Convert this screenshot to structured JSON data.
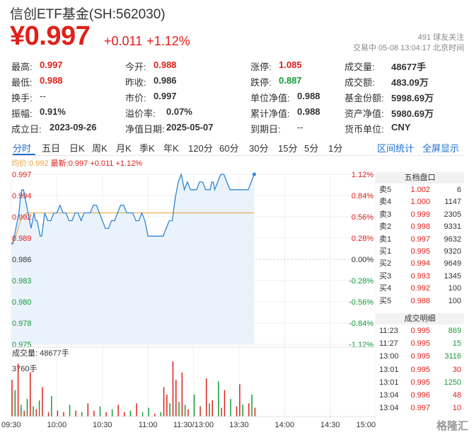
{
  "header": {
    "title": "信创ETF基金(SH:562030)",
    "price": "¥0.997",
    "change": "+0.011",
    "change_pct": "+1.12%",
    "followers": "491 球友关注",
    "status": "交易中 05-08 13:04:17 北京时间"
  },
  "stats": [
    [
      {
        "k": "最高:",
        "v": "0.997",
        "c": "red"
      },
      {
        "k": "今开:",
        "v": "0.988",
        "c": "red"
      },
      {
        "k": "涨停:",
        "v": "1.085",
        "c": "red"
      },
      {
        "k": "成交量:",
        "v": "48677手",
        "c": ""
      }
    ],
    [
      {
        "k": "最低:",
        "v": "0.988",
        "c": "red"
      },
      {
        "k": "昨收:",
        "v": "0.986",
        "c": ""
      },
      {
        "k": "跌停:",
        "v": "0.887",
        "c": "green"
      },
      {
        "k": "成交额:",
        "v": "483.09万",
        "c": ""
      }
    ],
    [
      {
        "k": "换手:",
        "v": "--",
        "c": "plain"
      },
      {
        "k": "市价:",
        "v": "0.997",
        "c": ""
      },
      {
        "k": "单位净值:",
        "v": "0.988",
        "c": ""
      },
      {
        "k": "基金份额:",
        "v": "5998.69万",
        "c": ""
      }
    ],
    [
      {
        "k": "振幅:",
        "v": "0.91%",
        "c": ""
      },
      {
        "k": "溢价率:",
        "v": "0.07%",
        "c": ""
      },
      {
        "k": "累计净值:",
        "v": "0.988",
        "c": ""
      },
      {
        "k": "资产净值:",
        "v": "5980.69万",
        "c": ""
      }
    ],
    [
      {
        "k": "成立日:",
        "v": "2023-09-26",
        "c": ""
      },
      {
        "k": "净值日期:",
        "v": "2025-05-07",
        "c": ""
      },
      {
        "k": "到期日:",
        "v": "--",
        "c": "plain"
      },
      {
        "k": "货币单位:",
        "v": "CNY",
        "c": ""
      }
    ]
  ],
  "tabs": [
    "分时",
    "五日",
    "日K",
    "周K",
    "月K",
    "季K",
    "年K",
    "120分",
    "60分",
    "30分",
    "15分",
    "5分",
    "1分"
  ],
  "active_tab": "分时",
  "links": {
    "interval_stats": "区间统计",
    "fullscreen": "全屏显示"
  },
  "legend": {
    "avg": "均价:0.992",
    "latest": "最新:0.997 +0.011 +1.12%"
  },
  "colors": {
    "up": "#e0201a",
    "down": "#159a39",
    "price_line": "#2f86d6",
    "avg_line": "#e8a33c",
    "accent": "#1f6fd1"
  },
  "chart_data": {
    "type": "line",
    "y_left_ticks": [
      "0.997",
      "0.994",
      "0.992",
      "0.989",
      "0.986",
      "0.983",
      "0.980",
      "0.978",
      "0.975"
    ],
    "y_right_ticks": [
      "1.12%",
      "0.84%",
      "0.56%",
      "0.28%",
      "0.00%",
      "-0.28%",
      "-0.56%",
      "-0.84%",
      "-1.12%"
    ],
    "ylim": [
      0.975,
      0.997
    ],
    "prev_close": 0.986,
    "x_ticks": [
      "09:30",
      "10:00",
      "10:30",
      "11:00",
      "11:30/13:00",
      "13:30",
      "14:00",
      "14:30",
      "15:00"
    ],
    "session_minutes": 240,
    "price_series": [
      [
        0,
        0.988
      ],
      [
        1,
        0.988
      ],
      [
        2,
        0.989
      ],
      [
        3,
        0.99
      ],
      [
        4,
        0.991
      ],
      [
        5,
        0.992
      ],
      [
        6,
        0.994
      ],
      [
        7,
        0.995
      ],
      [
        8,
        0.995
      ],
      [
        9,
        0.994
      ],
      [
        10,
        0.993
      ],
      [
        11,
        0.992
      ],
      [
        12,
        0.991
      ],
      [
        13,
        0.99
      ],
      [
        14,
        0.991
      ],
      [
        15,
        0.992
      ],
      [
        16,
        0.991
      ],
      [
        17,
        0.991
      ],
      [
        18,
        0.99
      ],
      [
        19,
        0.989
      ],
      [
        20,
        0.989
      ],
      [
        22,
        0.992
      ],
      [
        24,
        0.991
      ],
      [
        26,
        0.991
      ],
      [
        28,
        0.992
      ],
      [
        30,
        0.992
      ],
      [
        32,
        0.993
      ],
      [
        34,
        0.992
      ],
      [
        36,
        0.992
      ],
      [
        38,
        0.991
      ],
      [
        40,
        0.991
      ],
      [
        42,
        0.992
      ],
      [
        44,
        0.992
      ],
      [
        46,
        0.991
      ],
      [
        48,
        0.992
      ],
      [
        50,
        0.992
      ],
      [
        52,
        0.992
      ],
      [
        54,
        0.993
      ],
      [
        56,
        0.993
      ],
      [
        58,
        0.992
      ],
      [
        60,
        0.991
      ],
      [
        62,
        0.99
      ],
      [
        64,
        0.99
      ],
      [
        66,
        0.991
      ],
      [
        68,
        0.991
      ],
      [
        70,
        0.992
      ],
      [
        72,
        0.993
      ],
      [
        74,
        0.993
      ],
      [
        76,
        0.992
      ],
      [
        78,
        0.992
      ],
      [
        80,
        0.992
      ],
      [
        82,
        0.991
      ],
      [
        84,
        0.991
      ],
      [
        86,
        0.992
      ],
      [
        88,
        0.991
      ],
      [
        90,
        0.989
      ],
      [
        92,
        0.989
      ],
      [
        94,
        0.989
      ],
      [
        96,
        0.989
      ],
      [
        98,
        0.989
      ],
      [
        100,
        0.989
      ],
      [
        102,
        0.99
      ],
      [
        104,
        0.991
      ],
      [
        106,
        0.991
      ],
      [
        108,
        0.994
      ],
      [
        110,
        0.996
      ],
      [
        112,
        0.997
      ],
      [
        113,
        0.996
      ],
      [
        114,
        0.995
      ],
      [
        116,
        0.996
      ],
      [
        118,
        0.995
      ],
      [
        120,
        0.995
      ],
      [
        122,
        0.995
      ],
      [
        124,
        0.996
      ],
      [
        126,
        0.996
      ],
      [
        128,
        0.995
      ],
      [
        130,
        0.995
      ],
      [
        131,
        0.995
      ],
      [
        132,
        0.996
      ],
      [
        133,
        0.996
      ],
      [
        134,
        0.995
      ],
      [
        136,
        0.996
      ],
      [
        138,
        0.997
      ],
      [
        140,
        0.997
      ],
      [
        142,
        0.996
      ],
      [
        144,
        0.995
      ],
      [
        146,
        0.995
      ],
      [
        148,
        0.995
      ],
      [
        150,
        0.995
      ],
      [
        152,
        0.995
      ],
      [
        154,
        0.995
      ],
      [
        156,
        0.995
      ],
      [
        158,
        0.996
      ],
      [
        160,
        0.997
      ]
    ],
    "avg_series": [
      [
        0,
        0.988
      ],
      [
        3,
        0.989
      ],
      [
        6,
        0.991
      ],
      [
        10,
        0.992
      ],
      [
        20,
        0.992
      ],
      [
        40,
        0.992
      ],
      [
        60,
        0.992
      ],
      [
        80,
        0.992
      ],
      [
        90,
        0.992
      ],
      [
        100,
        0.992
      ],
      [
        110,
        0.992
      ],
      [
        120,
        0.992
      ],
      [
        130,
        0.992
      ],
      [
        140,
        0.992
      ],
      [
        150,
        0.992
      ],
      [
        160,
        0.992
      ]
    ],
    "volume_label": "成交量: 48677手",
    "volume_max_label": "3760手",
    "volume_max": 3760,
    "volumes": [
      [
        0,
        2500,
        "u"
      ],
      [
        2,
        1800,
        "d"
      ],
      [
        4,
        3600,
        "u"
      ],
      [
        6,
        800,
        "d"
      ],
      [
        8,
        400,
        "u"
      ],
      [
        10,
        1200,
        "d"
      ],
      [
        12,
        3000,
        "u"
      ],
      [
        14,
        700,
        "d"
      ],
      [
        16,
        500,
        "u"
      ],
      [
        18,
        1100,
        "d"
      ],
      [
        20,
        2000,
        "u"
      ],
      [
        24,
        300,
        "u"
      ],
      [
        26,
        1400,
        "d"
      ],
      [
        30,
        400,
        "u"
      ],
      [
        34,
        300,
        "u"
      ],
      [
        38,
        800,
        "d"
      ],
      [
        42,
        400,
        "u"
      ],
      [
        46,
        300,
        "d"
      ],
      [
        50,
        900,
        "u"
      ],
      [
        54,
        400,
        "u"
      ],
      [
        58,
        700,
        "d"
      ],
      [
        62,
        300,
        "u"
      ],
      [
        66,
        500,
        "d"
      ],
      [
        70,
        800,
        "u"
      ],
      [
        74,
        300,
        "u"
      ],
      [
        78,
        400,
        "d"
      ],
      [
        82,
        900,
        "u"
      ],
      [
        86,
        300,
        "d"
      ],
      [
        90,
        600,
        "d"
      ],
      [
        94,
        200,
        "u"
      ],
      [
        98,
        300,
        "d"
      ],
      [
        100,
        2000,
        "u"
      ],
      [
        102,
        1500,
        "u"
      ],
      [
        104,
        900,
        "d"
      ],
      [
        106,
        3760,
        "u"
      ],
      [
        108,
        2500,
        "u"
      ],
      [
        110,
        1000,
        "d"
      ],
      [
        112,
        3000,
        "u"
      ],
      [
        114,
        800,
        "d"
      ],
      [
        116,
        500,
        "u"
      ],
      [
        120,
        1500,
        "d"
      ],
      [
        124,
        700,
        "u"
      ],
      [
        128,
        2600,
        "u"
      ],
      [
        130,
        900,
        "d"
      ],
      [
        132,
        1100,
        "u"
      ],
      [
        136,
        2400,
        "d"
      ],
      [
        138,
        600,
        "u"
      ],
      [
        140,
        1800,
        "u"
      ],
      [
        144,
        1200,
        "d"
      ],
      [
        148,
        700,
        "u"
      ],
      [
        150,
        2200,
        "u"
      ],
      [
        152,
        800,
        "d"
      ],
      [
        156,
        900,
        "u"
      ],
      [
        158,
        1500,
        "d"
      ],
      [
        160,
        600,
        "u"
      ]
    ]
  },
  "order_book": {
    "title": "五档盘口",
    "rows": [
      {
        "label": "卖5",
        "price": "1.002",
        "vol": "6"
      },
      {
        "label": "卖4",
        "price": "1.000",
        "vol": "1147"
      },
      {
        "label": "卖3",
        "price": "0.999",
        "vol": "2305"
      },
      {
        "label": "卖2",
        "price": "0.998",
        "vol": "9331"
      },
      {
        "label": "卖1",
        "price": "0.997",
        "vol": "9632"
      },
      {
        "label": "买1",
        "price": "0.995",
        "vol": "9320"
      },
      {
        "label": "买2",
        "price": "0.994",
        "vol": "9649"
      },
      {
        "label": "买3",
        "price": "0.993",
        "vol": "1345"
      },
      {
        "label": "买4",
        "price": "0.992",
        "vol": "100"
      },
      {
        "label": "买5",
        "price": "0.988",
        "vol": "100"
      }
    ]
  },
  "trades": {
    "title": "成交明细",
    "rows": [
      {
        "time": "11:23",
        "price": "0.995",
        "vol": "869",
        "dir": "down"
      },
      {
        "time": "11:27",
        "price": "0.995",
        "vol": "15",
        "dir": "down"
      },
      {
        "time": "13:00",
        "price": "0.995",
        "vol": "3116",
        "dir": "down"
      },
      {
        "time": "13:01",
        "price": "0.995",
        "vol": "30",
        "dir": "up"
      },
      {
        "time": "13:01",
        "price": "0.995",
        "vol": "1250",
        "dir": "down"
      },
      {
        "time": "13:04",
        "price": "0.996",
        "vol": "48",
        "dir": "up"
      },
      {
        "time": "13:04",
        "price": "0.997",
        "vol": "10",
        "dir": "up"
      }
    ]
  },
  "watermark": "格隆汇"
}
